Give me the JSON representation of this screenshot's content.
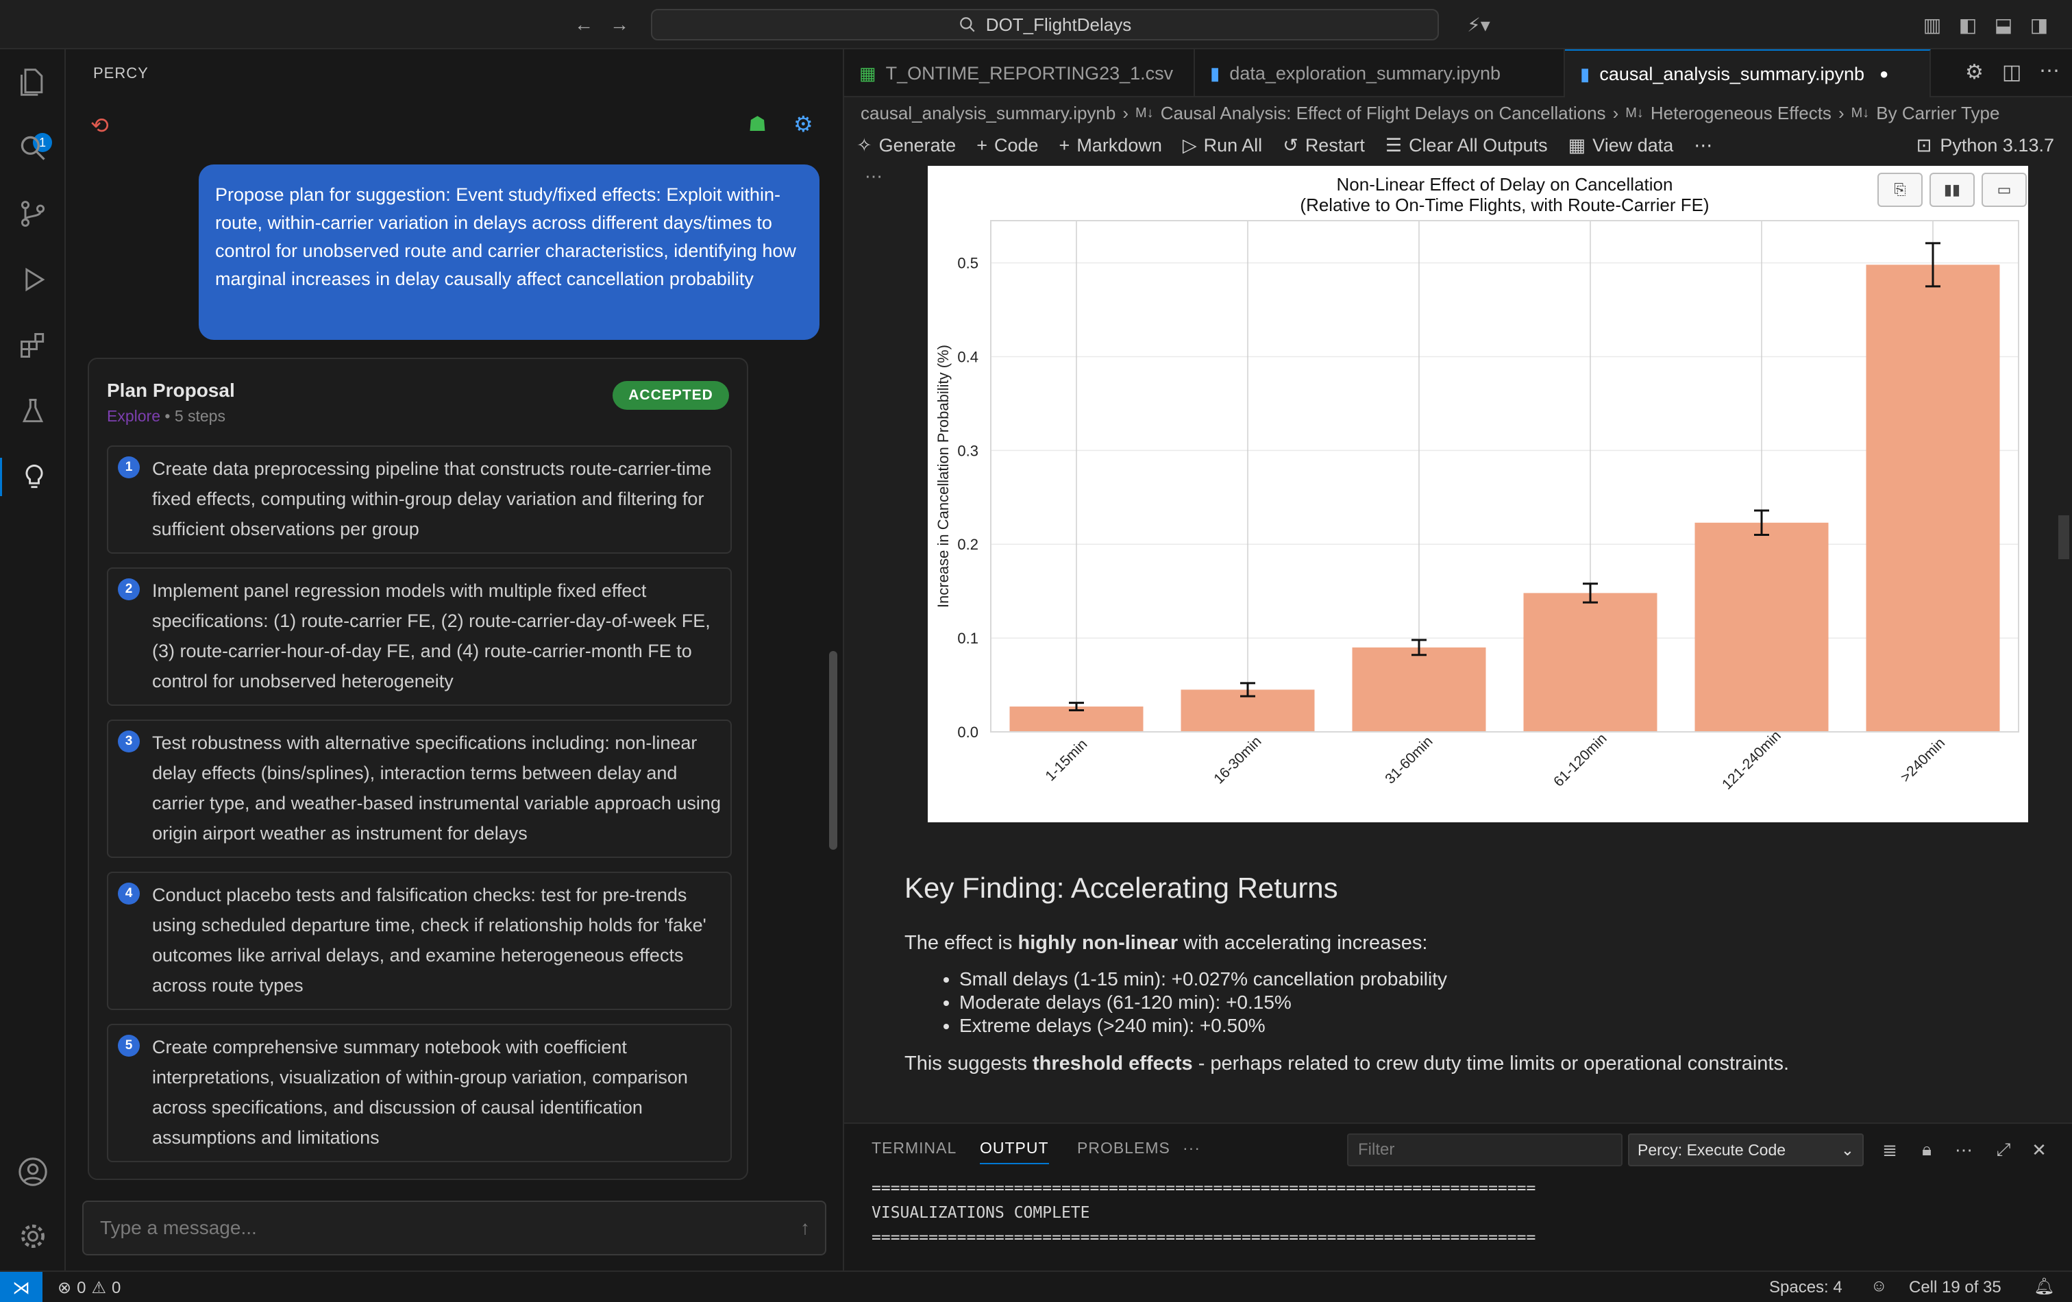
{
  "titlebar": {
    "search_text": "DOT_FlightDelays"
  },
  "activity": {
    "explorer_badge": "1"
  },
  "percy": {
    "title": "PERCY",
    "user_message": "Propose plan for suggestion: Event study/fixed effects: Exploit within-route, within-carrier variation in delays across different days/times to control for unobserved route and carrier characteristics, identifying how marginal increases in delay causally affect cancellation probability",
    "plan": {
      "title": "Plan Proposal",
      "mode": "Explore",
      "steps_count": "• 5 steps",
      "status": "ACCEPTED",
      "steps": [
        {
          "num": "1",
          "text": "Create data preprocessing pipeline that constructs route-carrier-time fixed effects, computing within-group delay variation and filtering for sufficient observations per group"
        },
        {
          "num": "2",
          "text": "Implement panel regression models with multiple fixed effect specifications: (1) route-carrier FE, (2) route-carrier-day-of-week FE, (3) route-carrier-hour-of-day FE, and (4) route-carrier-month FE to control for unobserved heterogeneity"
        },
        {
          "num": "3",
          "text": "Test robustness with alternative specifications including: non-linear delay effects (bins/splines), interaction terms between delay and carrier type, and weather-based instrumental variable approach using origin airport weather as instrument for delays"
        },
        {
          "num": "4",
          "text": "Conduct placebo tests and falsification checks: test for pre-trends using scheduled departure time, check if relationship holds for 'fake' outcomes like arrival delays, and examine heterogeneous effects across route types"
        },
        {
          "num": "5",
          "text": "Create comprehensive summary notebook with coefficient interpretations, visualization of within-group variation, comparison across specifications, and discussion of causal identification assumptions and limitations"
        }
      ]
    },
    "input_placeholder": "Type a message..."
  },
  "editor": {
    "tabs": [
      {
        "label": "T_ONTIME_REPORTING23_1.csv",
        "icon": "table-icon"
      },
      {
        "label": "data_exploration_summary.ipynb",
        "icon": "notebook-icon"
      },
      {
        "label": "causal_analysis_summary.ipynb",
        "icon": "notebook-icon",
        "dirty": true
      }
    ],
    "breadcrumb": [
      "causal_analysis_summary.ipynb",
      "Causal Analysis: Effect of Flight Delays on Cancellations",
      "Heterogeneous Effects",
      "By Carrier Type"
    ],
    "toolbar": {
      "generate": "Generate",
      "code": "Code",
      "markdown": "Markdown",
      "run_all": "Run All",
      "restart": "Restart",
      "clear_outputs": "Clear All Outputs",
      "view_data": "View data",
      "kernel": "Python 3.13.7"
    }
  },
  "chart_data": {
    "type": "bar",
    "title": "Non-Linear Effect of Delay on Cancellation",
    "subtitle": "(Relative to On-Time Flights, with Route-Carrier FE)",
    "xlabel": "",
    "ylabel": "Increase in Cancellation Probability (%)",
    "categories": [
      "1-15min",
      "16-30min",
      "31-60min",
      "61-120min",
      "121-240min",
      ">240min"
    ],
    "values": [
      0.027,
      0.045,
      0.09,
      0.148,
      0.223,
      0.498
    ],
    "errors": [
      0.004,
      0.007,
      0.008,
      0.01,
      0.013,
      0.023
    ],
    "ylim": [
      0,
      0.545
    ],
    "yticks": [
      "0.0",
      "0.1",
      "0.2",
      "0.3",
      "0.4",
      "0.5"
    ],
    "grid": true,
    "bar_color": "#f0a584"
  },
  "markdown": {
    "heading": "Key Finding: Accelerating Returns",
    "intro_pre": "The effect is ",
    "intro_bold": "highly non-linear",
    "intro_post": " with accelerating increases:",
    "bullets": [
      "Small delays (1-15 min): +0.027% cancellation probability",
      "Moderate delays (61-120 min): +0.15%",
      "Extreme delays (>240 min): +0.50%"
    ],
    "concl_pre": "This suggests ",
    "concl_bold": "threshold effects",
    "concl_post": " - perhaps related to crew duty time limits or operational constraints."
  },
  "panel": {
    "tabs": [
      "TERMINAL",
      "OUTPUT",
      "PROBLEMS"
    ],
    "more": "···",
    "filter_placeholder": "Filter",
    "output_channel": "Percy: Execute Code",
    "output_lines": [
      "======================================================================",
      "VISUALIZATIONS COMPLETE",
      "======================================================================"
    ]
  },
  "status": {
    "errors": "0",
    "warnings": "0",
    "spaces": "Spaces: 4",
    "cell": "Cell 19 of 35"
  }
}
